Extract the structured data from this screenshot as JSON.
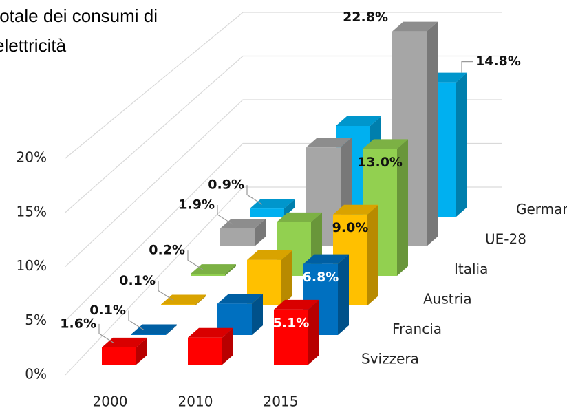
{
  "chart_data": {
    "type": "bar3d",
    "title": [
      "totale dei consumi di",
      "elettricità"
    ],
    "categories": [
      "2000",
      "2010",
      "2015"
    ],
    "series": [
      {
        "name": "Svizzera",
        "color": "#ff0000",
        "values": [
          1.6,
          2.5,
          5.1
        ],
        "value_labels": [
          "1.6%",
          null,
          "5.1%"
        ]
      },
      {
        "name": "Francia",
        "color": "#0070c0",
        "values": [
          0.1,
          3.0,
          6.8
        ],
        "value_labels": [
          "0.1%",
          null,
          "6.8%"
        ]
      },
      {
        "name": "Austria",
        "color": "#ffc000",
        "values": [
          0.1,
          4.5,
          9.0
        ],
        "value_labels": [
          "0.1%",
          null,
          "9.0%"
        ]
      },
      {
        "name": "Italia",
        "color": "#92d050",
        "values": [
          0.2,
          5.5,
          13.0
        ],
        "value_labels": [
          "0.2%",
          null,
          "13.0%"
        ]
      },
      {
        "name": "UE-28",
        "color": "#a6a6a6",
        "values": [
          1.9,
          10.5,
          22.8
        ],
        "value_labels": [
          "1.9%",
          null,
          "22.8%"
        ]
      },
      {
        "name": "Germania",
        "color": "#00b0f0",
        "values": [
          0.9,
          10.0,
          14.8
        ],
        "value_labels": [
          "0.9%",
          null,
          "14.8%"
        ]
      }
    ],
    "ylim": [
      0,
      20
    ],
    "yticks": [
      {
        "value": 0,
        "label": "0%"
      },
      {
        "value": 5,
        "label": "5%"
      },
      {
        "value": 10,
        "label": "10%"
      },
      {
        "value": 15,
        "label": "15%"
      },
      {
        "value": 20,
        "label": "20%"
      }
    ],
    "grid": true
  }
}
